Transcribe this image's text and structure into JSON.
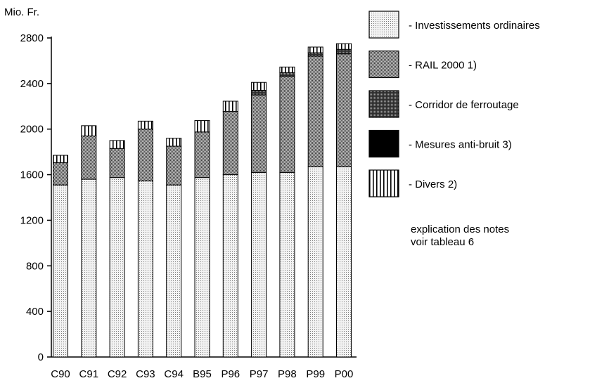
{
  "chart_data": {
    "type": "bar",
    "stacked": true,
    "unit_label": "Mio. Fr.",
    "categories": [
      "C90",
      "C91",
      "C92",
      "C93",
      "C94",
      "B95",
      "P96",
      "P97",
      "P98",
      "P99",
      "P00"
    ],
    "series": [
      {
        "name": "- Investissements ordinaires",
        "pattern": "fine-dots",
        "values": [
          1510,
          1560,
          1575,
          1545,
          1510,
          1575,
          1600,
          1620,
          1620,
          1670,
          1670
        ]
      },
      {
        "name": "- RAIL 2000 1)",
        "pattern": "medium-dots",
        "values": [
          195,
          380,
          255,
          455,
          340,
          400,
          555,
          680,
          845,
          970,
          990
        ]
      },
      {
        "name": "- Corridor de ferroutage",
        "pattern": "dense-dots",
        "values": [
          0,
          0,
          0,
          0,
          0,
          0,
          0,
          40,
          30,
          30,
          40
        ]
      },
      {
        "name": "- Mesures anti-bruit 3)",
        "pattern": "solid-black",
        "values": [
          0,
          0,
          0,
          0,
          0,
          0,
          0,
          0,
          0,
          0,
          0
        ]
      },
      {
        "name": "- Divers 2)",
        "pattern": "vertical-stripes",
        "values": [
          65,
          90,
          70,
          70,
          70,
          100,
          90,
          70,
          50,
          50,
          50
        ]
      }
    ],
    "y_ticks": [
      0,
      400,
      800,
      1200,
      1600,
      2000,
      2400,
      2800
    ],
    "ylim": [
      0,
      2800
    ],
    "grid": false,
    "legend_position": "right",
    "note_lines": [
      "explication des notes",
      "voir tableau 6"
    ]
  }
}
